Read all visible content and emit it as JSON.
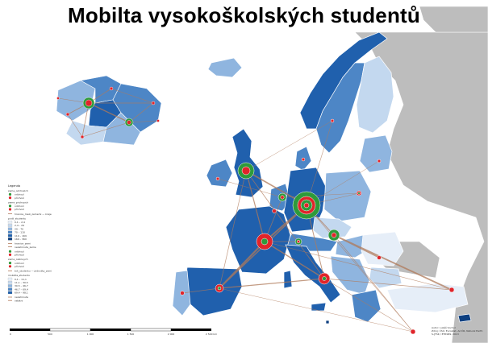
{
  "title": "Mobilta vysokoškolských studentů",
  "colors": {
    "sea": "#ffffff",
    "non_eu_land": "#bdbdbd",
    "flow_line": "#b07a5a",
    "outgoing": "#2e9a3a",
    "incoming": "#e0242a",
    "choropleth": [
      "#e6eef8",
      "#c3d8ef",
      "#8fb5df",
      "#4d86c6",
      "#2060ad",
      "#0d3f80"
    ]
  },
  "legend": {
    "heading": "Legenda",
    "sections": [
      {
        "title": "zeme_odchozich",
        "items": [
          "odchozí",
          "příchozí"
        ]
      },
      {
        "title": "zeme_prichozich",
        "items": [
          "odchozí",
          "příchozí"
        ]
      },
      {
        "title": "",
        "items": [
          "hranice_mezi_zememi — kraje"
        ]
      },
      {
        "title": "podil_studentu",
        "items": [
          "0,1 – 2,4",
          "2,4 – 29",
          "29 – 70",
          "70 – 110",
          "110 – 169",
          "169 – 360"
        ]
      },
      {
        "title": "",
        "items": [
          "hranice_zemi",
          "nezahrnute_zeme"
        ]
      },
      {
        "title": "",
        "items": [
          "odchozí",
          "příchozí"
        ]
      },
      {
        "title": "zeme_celkovych",
        "items": [
          "odchozí",
          "příchozí"
        ]
      },
      {
        "title": "",
        "items": [
          "tok_studentu — jednotky_zemi"
        ]
      },
      {
        "title": "mobilita_studentu",
        "items": [
          "0,1 – 11,1",
          "11,1 – 30,5",
          "30,5 – 46,7",
          "46,7 – 69,4",
          "69,4 – 98,1"
        ]
      },
      {
        "title": "",
        "items": [
          "nezahrnute",
          "ostatni"
        ]
      }
    ]
  },
  "scale_bar": {
    "labels": [
      "0",
      "500",
      "1 000",
      "1 500",
      "2 000",
      "2 500 km"
    ]
  },
  "credits": [
    "Autor: Lukáš Sochor",
    "Zdroj: ČSÚ, Eurostat, ArcČR, Natural Earth",
    "S-JTSK / ETRS89, 2013"
  ]
}
